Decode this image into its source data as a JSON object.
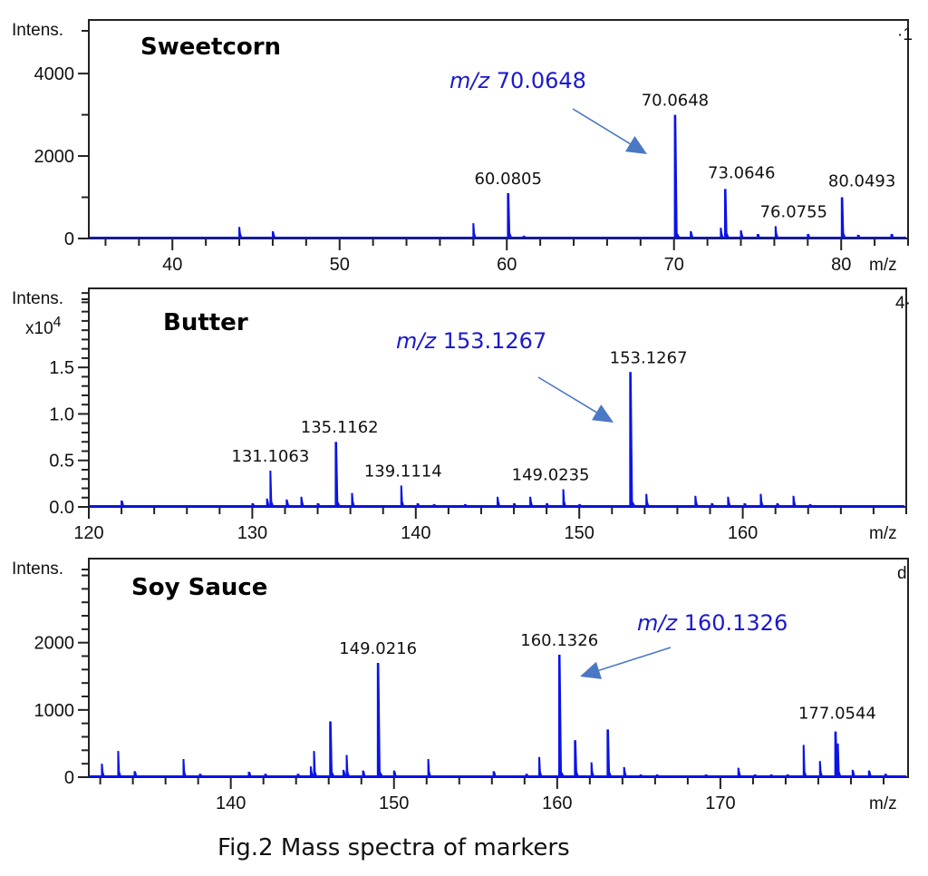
{
  "figure": {
    "caption": "Fig.2 Mass spectra of markers",
    "peak_color": "#0a14e6",
    "callout_color": "#1a1acc",
    "arrow_color": "#4a78c4"
  },
  "chart_data": [
    {
      "type": "bar",
      "title": "Sweetcorn",
      "xlabel": "m/z",
      "ylabel": "Intens.",
      "y_multiplier_label": "",
      "corner_mark": "·1",
      "xlim": [
        35,
        84
      ],
      "ylim": [
        0,
        5300
      ],
      "x_ticks_major": [
        40,
        50,
        60,
        70,
        80
      ],
      "x_tick_labels": [
        "40",
        "50",
        "60",
        "70",
        "80"
      ],
      "x_ticks_minor_step": 2,
      "y_ticks_major": [
        0,
        2000,
        4000
      ],
      "y_tick_labels": [
        "0",
        "2000",
        "4000"
      ],
      "y_ticks_minor": [
        1000,
        3000
      ],
      "grid": false,
      "callout": {
        "prefix": "m/z",
        "value": "70.0648",
        "target_mz": 70.0648
      },
      "peaks": [
        {
          "mz": 44.0,
          "intensity": 280
        },
        {
          "mz": 46.0,
          "intensity": 180
        },
        {
          "mz": 58.0,
          "intensity": 370
        },
        {
          "mz": 60.0805,
          "intensity": 1100,
          "label": "60.0805"
        },
        {
          "mz": 61.0,
          "intensity": 70
        },
        {
          "mz": 70.0648,
          "intensity": 3000,
          "label": "70.0648"
        },
        {
          "mz": 71.0,
          "intensity": 180
        },
        {
          "mz": 72.8,
          "intensity": 260
        },
        {
          "mz": 73.0646,
          "intensity": 1200,
          "label": "73.0646"
        },
        {
          "mz": 74.0,
          "intensity": 200
        },
        {
          "mz": 75.0,
          "intensity": 110
        },
        {
          "mz": 76.0755,
          "intensity": 300,
          "label": "76.0755"
        },
        {
          "mz": 78.0,
          "intensity": 110
        },
        {
          "mz": 80.0493,
          "intensity": 1000,
          "label": "80.0493"
        },
        {
          "mz": 81.0,
          "intensity": 90
        },
        {
          "mz": 83.0,
          "intensity": 110
        }
      ]
    },
    {
      "type": "bar",
      "title": "Butter",
      "xlabel": "m/z",
      "ylabel": "Intens.",
      "y_multiplier_label": "x10",
      "y_multiplier_exp": "4",
      "corner_mark": "4·",
      "xlim": [
        120,
        170
      ],
      "ylim": [
        0,
        2.35
      ],
      "x_ticks_major": [
        120,
        130,
        140,
        150,
        160
      ],
      "x_tick_labels": [
        "120",
        "130",
        "140",
        "150",
        "160"
      ],
      "x_ticks_minor_step": 2,
      "y_ticks_major": [
        0.0,
        0.5,
        1.0,
        1.5
      ],
      "y_tick_labels": [
        "0.0",
        "0.5",
        "1.0",
        "1.5"
      ],
      "y_ticks_minor_step": 0.1,
      "grid": false,
      "callout": {
        "prefix": "m/z",
        "value": "153.1267",
        "target_mz": 153.1267
      },
      "peaks": [
        {
          "mz": 122.0,
          "intensity": 0.07
        },
        {
          "mz": 130.0,
          "intensity": 0.04
        },
        {
          "mz": 130.9,
          "intensity": 0.09
        },
        {
          "mz": 131.1063,
          "intensity": 0.39,
          "label": "131.1063"
        },
        {
          "mz": 132.1,
          "intensity": 0.08
        },
        {
          "mz": 133.0,
          "intensity": 0.11
        },
        {
          "mz": 134.0,
          "intensity": 0.04
        },
        {
          "mz": 135.1162,
          "intensity": 0.7,
          "label": "135.1162"
        },
        {
          "mz": 136.1,
          "intensity": 0.15
        },
        {
          "mz": 139.1114,
          "intensity": 0.23,
          "label": "139.1114"
        },
        {
          "mz": 140.1,
          "intensity": 0.04
        },
        {
          "mz": 141.1,
          "intensity": 0.03
        },
        {
          "mz": 143.0,
          "intensity": 0.03
        },
        {
          "mz": 145.0,
          "intensity": 0.11
        },
        {
          "mz": 146.0,
          "intensity": 0.04
        },
        {
          "mz": 147.0,
          "intensity": 0.11
        },
        {
          "mz": 148.0,
          "intensity": 0.04
        },
        {
          "mz": 149.0235,
          "intensity": 0.19,
          "label": "149.0235"
        },
        {
          "mz": 150.0,
          "intensity": 0.03
        },
        {
          "mz": 153.1267,
          "intensity": 1.45,
          "label": "153.1267"
        },
        {
          "mz": 154.1,
          "intensity": 0.14
        },
        {
          "mz": 157.1,
          "intensity": 0.12
        },
        {
          "mz": 158.1,
          "intensity": 0.04
        },
        {
          "mz": 159.1,
          "intensity": 0.11
        },
        {
          "mz": 160.1,
          "intensity": 0.04
        },
        {
          "mz": 161.1,
          "intensity": 0.14
        },
        {
          "mz": 162.1,
          "intensity": 0.04
        },
        {
          "mz": 163.1,
          "intensity": 0.12
        },
        {
          "mz": 164.1,
          "intensity": 0.03
        }
      ]
    },
    {
      "type": "bar",
      "title": "Soy Sauce",
      "xlabel": "m/z",
      "ylabel": "Intens.",
      "y_multiplier_label": "",
      "corner_mark": "d",
      "xlim": [
        131.3,
        181.5
      ],
      "ylim": [
        0,
        3250
      ],
      "x_ticks_major": [
        140,
        150,
        160,
        170
      ],
      "x_tick_labels": [
        "140",
        "150",
        "160",
        "170"
      ],
      "x_ticks_minor_step": 2,
      "y_ticks_major": [
        0,
        1000,
        2000
      ],
      "y_tick_labels": [
        "0",
        "1000",
        "2000"
      ],
      "y_ticks_minor_step": 200,
      "grid": false,
      "callout": {
        "prefix": "m/z",
        "value": "160.1326",
        "target_mz": 160.1326
      },
      "peaks": [
        {
          "mz": 132.1,
          "intensity": 200
        },
        {
          "mz": 133.1,
          "intensity": 390
        },
        {
          "mz": 134.1,
          "intensity": 90
        },
        {
          "mz": 137.1,
          "intensity": 270
        },
        {
          "mz": 138.1,
          "intensity": 50
        },
        {
          "mz": 141.1,
          "intensity": 80
        },
        {
          "mz": 142.1,
          "intensity": 50
        },
        {
          "mz": 144.1,
          "intensity": 50
        },
        {
          "mz": 144.9,
          "intensity": 160
        },
        {
          "mz": 145.1,
          "intensity": 390
        },
        {
          "mz": 146.1,
          "intensity": 830
        },
        {
          "mz": 146.9,
          "intensity": 110
        },
        {
          "mz": 147.1,
          "intensity": 330
        },
        {
          "mz": 148.1,
          "intensity": 100
        },
        {
          "mz": 149.0216,
          "intensity": 1700,
          "label": "149.0216"
        },
        {
          "mz": 150.0,
          "intensity": 100
        },
        {
          "mz": 152.1,
          "intensity": 270
        },
        {
          "mz": 156.1,
          "intensity": 90
        },
        {
          "mz": 158.1,
          "intensity": 50
        },
        {
          "mz": 158.9,
          "intensity": 300
        },
        {
          "mz": 160.1326,
          "intensity": 1820,
          "label": "160.1326"
        },
        {
          "mz": 161.1,
          "intensity": 550
        },
        {
          "mz": 162.1,
          "intensity": 220
        },
        {
          "mz": 163.1,
          "intensity": 710
        },
        {
          "mz": 164.1,
          "intensity": 150
        },
        {
          "mz": 165.1,
          "intensity": 40
        },
        {
          "mz": 166.1,
          "intensity": 40
        },
        {
          "mz": 169.1,
          "intensity": 40
        },
        {
          "mz": 171.1,
          "intensity": 140
        },
        {
          "mz": 172.1,
          "intensity": 40
        },
        {
          "mz": 173.1,
          "intensity": 40
        },
        {
          "mz": 174.1,
          "intensity": 40
        },
        {
          "mz": 175.1,
          "intensity": 480
        },
        {
          "mz": 176.1,
          "intensity": 240
        },
        {
          "mz": 177.0544,
          "intensity": 680,
          "label": "177.0544"
        },
        {
          "mz": 177.2,
          "intensity": 500
        },
        {
          "mz": 178.1,
          "intensity": 110
        },
        {
          "mz": 179.1,
          "intensity": 100
        },
        {
          "mz": 180.1,
          "intensity": 50
        }
      ]
    }
  ]
}
